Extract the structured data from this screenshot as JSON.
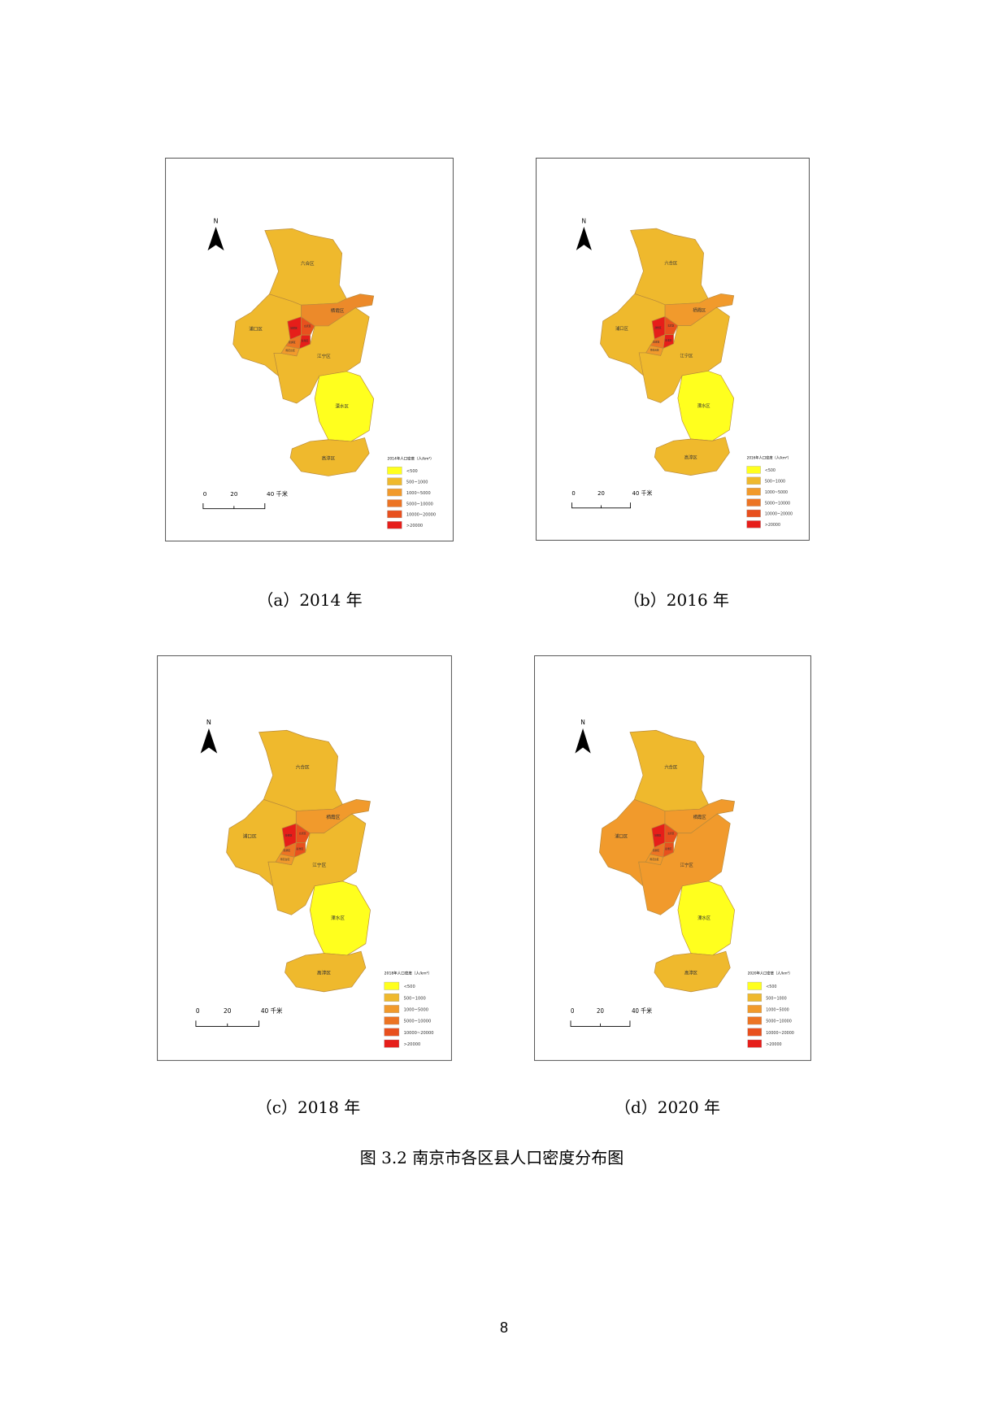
{
  "maps": [
    {
      "caption": "（a）2014 年",
      "north": "N",
      "scale_labels": [
        "0",
        "20",
        "40 千米"
      ],
      "legend": {
        "title": "2014年人口密度（人/km²）",
        "items": [
          {
            "label": "<500",
            "color": "#ffff1e"
          },
          {
            "label": "500~1000",
            "color": "#efb92d"
          },
          {
            "label": "1000~5000",
            "color": "#f19a2c"
          },
          {
            "label": "5000~10000",
            "color": "#ec7424"
          },
          {
            "label": "10000~20000",
            "color": "#e8501e"
          },
          {
            "label": ">20000",
            "color": "#e61e1a"
          }
        ]
      },
      "regions": [
        {
          "label": "六合区",
          "color": "#efb92d"
        },
        {
          "label": "栖霞区",
          "color": "#ec8a2a"
        },
        {
          "label": "浦口区",
          "color": "#efb92d"
        },
        {
          "label": "江宁区",
          "color": "#efb92d"
        },
        {
          "label": "溧水区",
          "color": "#ffff1e"
        },
        {
          "label": "高淳区",
          "color": "#efb92d"
        },
        {
          "label": "鼓楼区",
          "color": "#e61e1a"
        },
        {
          "label": "玄武区",
          "color": "#e8501e"
        },
        {
          "label": "秦淮区",
          "color": "#e61e1a"
        },
        {
          "label": "建邺区",
          "color": "#ec7424"
        },
        {
          "label": "雨花台区",
          "color": "#f19a2c"
        }
      ]
    },
    {
      "caption": "（b）2016 年",
      "north": "N",
      "scale_labels": [
        "0",
        "20",
        "40 千米"
      ],
      "legend": {
        "title": "2016年人口密度（人/km²）",
        "items": [
          {
            "label": "<500",
            "color": "#ffff1e"
          },
          {
            "label": "500~1000",
            "color": "#efb92d"
          },
          {
            "label": "1000~5000",
            "color": "#f19a2c"
          },
          {
            "label": "5000~10000",
            "color": "#ec7424"
          },
          {
            "label": "10000~20000",
            "color": "#e8501e"
          },
          {
            "label": ">20000",
            "color": "#e61e1a"
          }
        ]
      },
      "regions": [
        {
          "label": "六合区",
          "color": "#efb92d"
        },
        {
          "label": "栖霞区",
          "color": "#f19a2c"
        },
        {
          "label": "浦口区",
          "color": "#efb92d"
        },
        {
          "label": "江宁区",
          "color": "#efb92d"
        },
        {
          "label": "溧水区",
          "color": "#ffff1e"
        },
        {
          "label": "高淳区",
          "color": "#efb92d"
        },
        {
          "label": "鼓楼区",
          "color": "#e61e1a"
        },
        {
          "label": "玄武区",
          "color": "#e8501e"
        },
        {
          "label": "秦淮区",
          "color": "#e61e1a"
        },
        {
          "label": "建邺区",
          "color": "#ec7424"
        },
        {
          "label": "雨花台区",
          "color": "#f19a2c"
        }
      ]
    },
    {
      "caption": "（c）2018 年",
      "north": "N",
      "scale_labels": [
        "0",
        "20",
        "40 千米"
      ],
      "legend": {
        "title": "2018年人口密度（人/km²）",
        "items": [
          {
            "label": "<500",
            "color": "#ffff1e"
          },
          {
            "label": "500~1000",
            "color": "#efb92d"
          },
          {
            "label": "1000~5000",
            "color": "#f19a2c"
          },
          {
            "label": "5000~10000",
            "color": "#ec7424"
          },
          {
            "label": "10000~20000",
            "color": "#e8501e"
          },
          {
            "label": ">20000",
            "color": "#e61e1a"
          }
        ]
      },
      "regions": [
        {
          "label": "六合区",
          "color": "#efb92d"
        },
        {
          "label": "栖霞区",
          "color": "#f19a2c"
        },
        {
          "label": "浦口区",
          "color": "#efb92d"
        },
        {
          "label": "江宁区",
          "color": "#efb92d"
        },
        {
          "label": "溧水区",
          "color": "#ffff1e"
        },
        {
          "label": "高淳区",
          "color": "#efb92d"
        },
        {
          "label": "鼓楼区",
          "color": "#e61e1a"
        },
        {
          "label": "玄武区",
          "color": "#e8501e"
        },
        {
          "label": "秦淮区",
          "color": "#e8501e"
        },
        {
          "label": "建邺区",
          "color": "#ec7424"
        },
        {
          "label": "雨花台区",
          "color": "#f19a2c"
        }
      ]
    },
    {
      "caption": "（d）2020 年",
      "north": "N",
      "scale_labels": [
        "0",
        "20",
        "40 千米"
      ],
      "legend": {
        "title": "2020年人口密度（人/km²）",
        "items": [
          {
            "label": "<500",
            "color": "#ffff1e"
          },
          {
            "label": "500~1000",
            "color": "#efb92d"
          },
          {
            "label": "1000~5000",
            "color": "#f19a2c"
          },
          {
            "label": "5000~10000",
            "color": "#ec7424"
          },
          {
            "label": "10000~20000",
            "color": "#e8501e"
          },
          {
            "label": ">20000",
            "color": "#e61e1a"
          }
        ]
      },
      "regions": [
        {
          "label": "六合区",
          "color": "#efb92d"
        },
        {
          "label": "栖霞区",
          "color": "#f19a2c"
        },
        {
          "label": "浦口区",
          "color": "#f19a2c"
        },
        {
          "label": "江宁区",
          "color": "#f19a2c"
        },
        {
          "label": "溧水区",
          "color": "#ffff1e"
        },
        {
          "label": "高淳区",
          "color": "#efb92d"
        },
        {
          "label": "鼓楼区",
          "color": "#e61e1a"
        },
        {
          "label": "玄武区",
          "color": "#e8501e"
        },
        {
          "label": "秦淮区",
          "color": "#e8501e"
        },
        {
          "label": "建邺区",
          "color": "#ec7424"
        },
        {
          "label": "雨花台区",
          "color": "#f19a2c"
        }
      ]
    }
  ],
  "figure_caption": "图 3.2 南京市各区县人口密度分布图",
  "page_number": "8"
}
